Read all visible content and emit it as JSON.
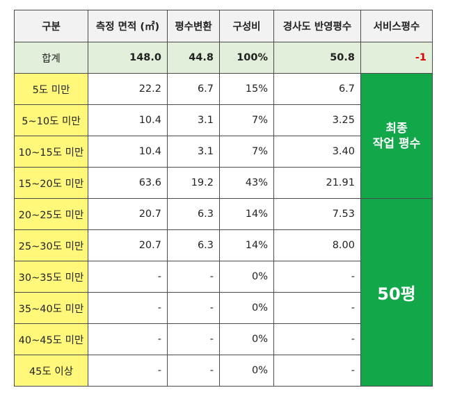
{
  "headers": [
    "구분",
    "측정 면적 (㎡)",
    "평수변환",
    "구성비",
    "경사도 반영평수",
    "서비스평수"
  ],
  "total": {
    "label": "합계",
    "area": "148.0",
    "pyeong": "44.8",
    "ratio": "100%",
    "slope": "50.8",
    "service": "-1"
  },
  "rows": [
    {
      "label": "5도 미만",
      "area": "22.2",
      "pyeong": "6.7",
      "ratio": "15%",
      "slope": "6.7"
    },
    {
      "label": "5~10도 미만",
      "area": "10.4",
      "pyeong": "3.1",
      "ratio": "7%",
      "slope": "3.25"
    },
    {
      "label": "10~15도 미만",
      "area": "10.4",
      "pyeong": "3.1",
      "ratio": "7%",
      "slope": "3.40"
    },
    {
      "label": "15~20도 미만",
      "area": "63.6",
      "pyeong": "19.2",
      "ratio": "43%",
      "slope": "21.91"
    },
    {
      "label": "20~25도 미만",
      "area": "20.7",
      "pyeong": "6.3",
      "ratio": "14%",
      "slope": "7.53"
    },
    {
      "label": "25~30도 미만",
      "area": "20.7",
      "pyeong": "6.3",
      "ratio": "14%",
      "slope": "8.00"
    },
    {
      "label": "30~35도 미만",
      "area": "-",
      "pyeong": "-",
      "ratio": "0%",
      "slope": "-"
    },
    {
      "label": "35~40도 미만",
      "area": "-",
      "pyeong": "-",
      "ratio": "0%",
      "slope": "-"
    },
    {
      "label": "40~45도 미만",
      "area": "-",
      "pyeong": "-",
      "ratio": "0%",
      "slope": "-"
    },
    {
      "label": "45도 이상",
      "area": "-",
      "pyeong": "-",
      "ratio": "0%",
      "slope": "-"
    }
  ],
  "merged": {
    "top_line1": "최종",
    "top_line2": "작업 평수",
    "bottom": "50평"
  },
  "colors": {
    "label_bg": "#fff87a",
    "total_bg": "#e2efda",
    "merged_bg": "#12a84a",
    "negative": "#e00000"
  }
}
